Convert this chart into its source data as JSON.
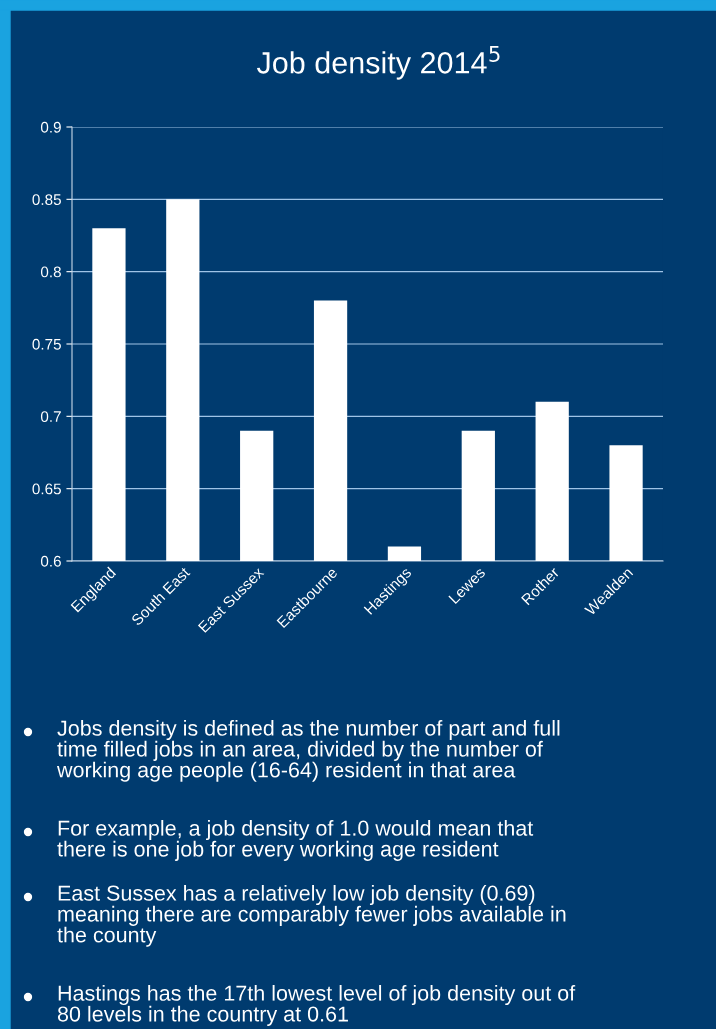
{
  "chart_data": {
    "type": "bar",
    "title": "Job density 2014$^{5}$",
    "categories": [
      "England",
      "South East",
      "East Sussex",
      "Eastbourne",
      "Hastings",
      "Lewes",
      "Rother",
      "Wealden"
    ],
    "values": [
      0.83,
      0.85,
      0.69,
      0.78,
      0.61,
      0.69,
      0.71,
      0.68
    ],
    "color": "#ffffff",
    "ylim": [
      0.6,
      0.9
    ],
    "yticks": [
      0.6,
      0.65,
      0.7,
      0.75,
      0.8,
      0.85,
      0.9
    ],
    "grid": "y",
    "annotations": [
      "Jobs density is defined as the number of part and full\ntime filled jobs in an area, divided by the number of\nworking age people (16-64) resident in that area",
      "For example, a job density of 1.0 would mean that\nthere is one job for every working age resident",
      "East Sussex has a relatively low job density (0.69)\nmeaning there are comparably fewer jobs available in\nthe county",
      "Hastings has the 17th lowest level of job density out of\n80 levels in the country at 0.61"
    ]
  }
}
